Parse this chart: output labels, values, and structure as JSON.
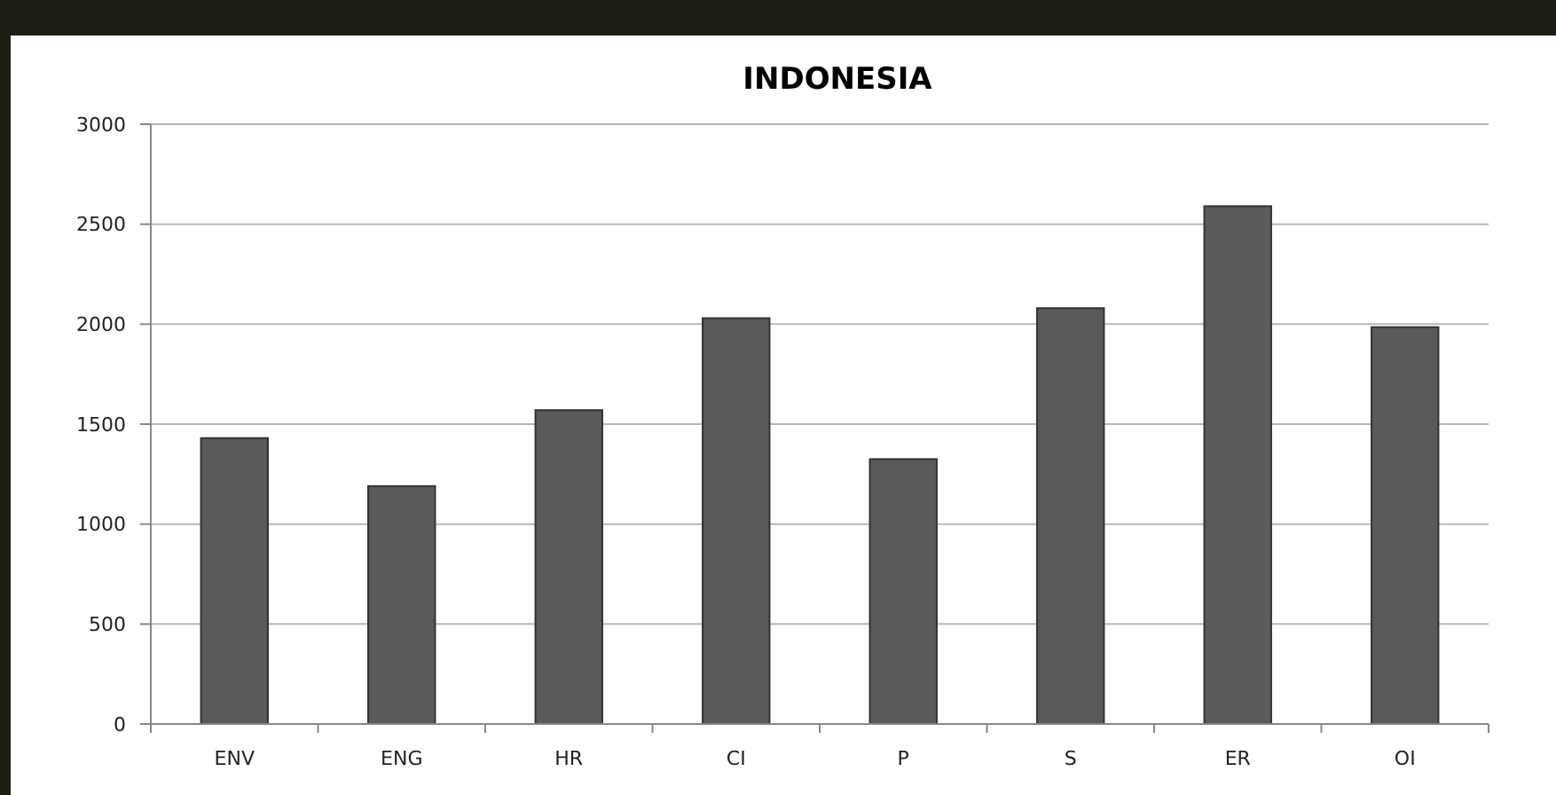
{
  "chart_data": {
    "type": "bar",
    "title": "INDONESIA",
    "categories": [
      "ENV",
      "ENG",
      "HR",
      "CI",
      "P",
      "S",
      "ER",
      "OI"
    ],
    "values": [
      1430,
      1190,
      1570,
      2030,
      1325,
      2080,
      2590,
      1985
    ],
    "color": "#5a5a5a",
    "ylim": [
      0,
      3000
    ],
    "yticks": [
      0,
      500,
      1000,
      1500,
      2000,
      2500,
      3000
    ],
    "grid": "y"
  }
}
